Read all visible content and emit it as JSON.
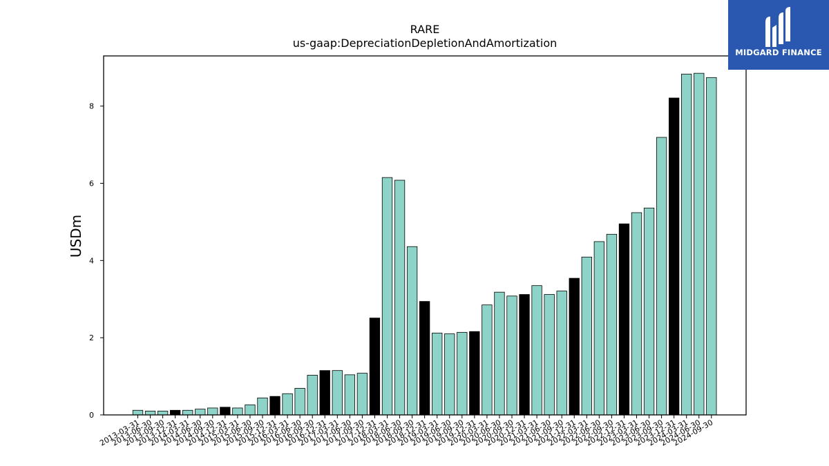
{
  "logo": {
    "text": "MIDGARD FINANCE"
  },
  "colors": {
    "bar": "#8dd3c7",
    "highlight": "#000000",
    "edge": "#000000"
  },
  "chart_data": {
    "type": "bar",
    "title": "RARE",
    "subtitle": "us-gaap:DepreciationDepletionAndAmortization",
    "ylabel": "USDm",
    "xlabel": "",
    "ylim": [
      0,
      9.3
    ],
    "yticks": [
      0,
      2,
      4,
      6,
      8
    ],
    "grid": false,
    "categories": [
      "2013-03-31",
      "2013-06-30",
      "2013-09-30",
      "2013-12-31",
      "2014-03-31",
      "2014-06-30",
      "2014-09-30",
      "2014-12-31",
      "2015-03-31",
      "2015-06-30",
      "2015-09-30",
      "2015-12-31",
      "2016-03-31",
      "2016-06-30",
      "2016-09-30",
      "2016-12-31",
      "2017-03-31",
      "2017-06-30",
      "2017-09-30",
      "2017-12-31",
      "2018-03-31",
      "2018-06-30",
      "2018-09-30",
      "2018-12-31",
      "2019-03-31",
      "2019-06-30",
      "2019-09-30",
      "2019-12-31",
      "2020-03-31",
      "2020-06-30",
      "2020-09-30",
      "2020-12-31",
      "2021-03-31",
      "2021-06-30",
      "2021-09-30",
      "2021-12-31",
      "2022-03-31",
      "2022-06-30",
      "2022-09-30",
      "2022-12-31",
      "2023-03-31",
      "2023-06-30",
      "2023-09-30",
      "2023-12-31",
      "2024-03-31",
      "2024-06-30",
      "2024-09-30"
    ],
    "values": [
      0.12,
      0.1,
      0.1,
      0.12,
      0.12,
      0.15,
      0.18,
      0.2,
      0.18,
      0.26,
      0.44,
      0.48,
      0.55,
      0.69,
      1.03,
      1.15,
      1.15,
      1.04,
      1.08,
      2.51,
      6.15,
      6.08,
      4.36,
      2.94,
      2.12,
      2.1,
      2.14,
      2.16,
      2.85,
      3.18,
      3.08,
      3.12,
      3.35,
      3.12,
      3.21,
      3.54,
      4.09,
      4.49,
      4.68,
      4.95,
      5.24,
      5.36,
      7.19,
      8.21,
      8.83,
      8.85,
      8.74
    ],
    "highlighted": [
      false,
      false,
      false,
      true,
      false,
      false,
      false,
      true,
      false,
      false,
      false,
      true,
      false,
      false,
      false,
      true,
      false,
      false,
      false,
      true,
      false,
      false,
      false,
      true,
      false,
      false,
      false,
      true,
      false,
      false,
      false,
      true,
      false,
      false,
      false,
      true,
      false,
      false,
      false,
      true,
      false,
      false,
      false,
      true,
      false,
      false,
      false
    ]
  }
}
